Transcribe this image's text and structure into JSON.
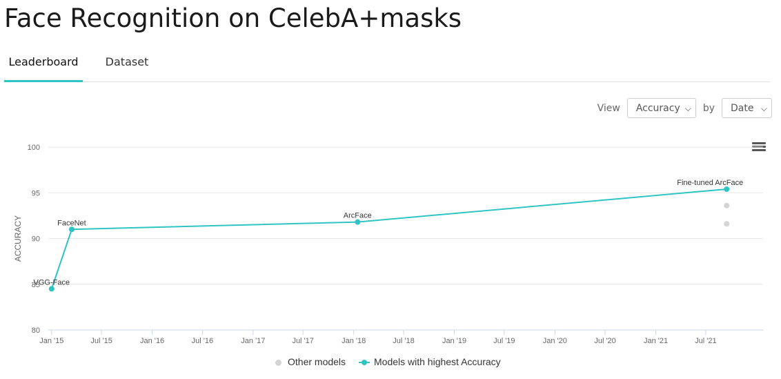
{
  "page": {
    "title": "Face Recognition on CelebA+masks"
  },
  "tabs": [
    {
      "label": "Leaderboard",
      "active": true
    },
    {
      "label": "Dataset",
      "active": false
    }
  ],
  "controls": {
    "view_label": "View",
    "view_value": "Accuracy",
    "by_label": "by",
    "by_value": "Date"
  },
  "legend": {
    "other_label": "Other models",
    "highest_label": "Models with highest Accuracy"
  },
  "colors": {
    "accent": "#2ec4c4",
    "other": "#d4d4d4"
  },
  "icons": {
    "menu": "hamburger-menu-icon",
    "chevron": "chevron-down-icon"
  },
  "chart_data": {
    "type": "line",
    "title": "",
    "xlabel": "",
    "ylabel": "ACCURACY",
    "ylim": [
      80,
      100
    ],
    "yticks": [
      80,
      85,
      90,
      95,
      100
    ],
    "xlim": [
      "2014-12-20",
      "2022-01-25"
    ],
    "xticks": [
      {
        "date": "2015-01-01",
        "label": "Jan '15"
      },
      {
        "date": "2015-07-01",
        "label": "Jul '15"
      },
      {
        "date": "2016-01-01",
        "label": "Jan '16"
      },
      {
        "date": "2016-07-01",
        "label": "Jul '16"
      },
      {
        "date": "2017-01-01",
        "label": "Jan '17"
      },
      {
        "date": "2017-07-01",
        "label": "Jul '17"
      },
      {
        "date": "2018-01-01",
        "label": "Jan '18"
      },
      {
        "date": "2018-07-01",
        "label": "Jul '18"
      },
      {
        "date": "2019-01-01",
        "label": "Jan '19"
      },
      {
        "date": "2019-07-01",
        "label": "Jul '19"
      },
      {
        "date": "2020-01-01",
        "label": "Jan '20"
      },
      {
        "date": "2020-07-01",
        "label": "Jul '20"
      },
      {
        "date": "2021-01-01",
        "label": "Jan '21"
      },
      {
        "date": "2021-07-01",
        "label": "Jul '21"
      }
    ],
    "grid": true,
    "legend_position": "bottom-center",
    "series": [
      {
        "name": "Models with highest Accuracy",
        "points": [
          {
            "x": "2015-01-01",
            "y": 84.5,
            "label": "VGG-Face"
          },
          {
            "x": "2015-03-15",
            "y": 91.0,
            "label": "FaceNet"
          },
          {
            "x": "2018-01-15",
            "y": 91.8,
            "label": "ArcFace"
          },
          {
            "x": "2021-09-15",
            "y": 95.4,
            "label": "Fine-tuned ArcFace"
          }
        ]
      },
      {
        "name": "Other models",
        "points": [
          {
            "x": "2021-09-15",
            "y": 93.6
          },
          {
            "x": "2021-09-15",
            "y": 91.6
          }
        ]
      }
    ]
  }
}
